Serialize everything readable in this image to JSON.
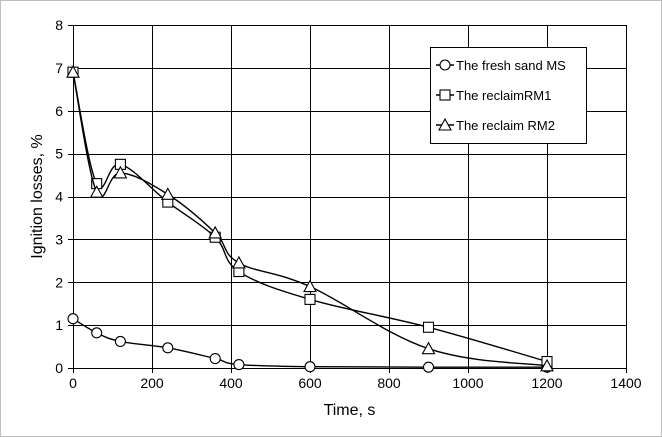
{
  "chart_data": {
    "type": "line",
    "xlabel": "Time, s",
    "ylabel": "Ignition losses, %",
    "xlim": [
      0,
      1400
    ],
    "ylim": [
      0,
      8
    ],
    "xticks": [
      0,
      200,
      400,
      600,
      800,
      1000,
      1200,
      1400
    ],
    "yticks": [
      0,
      1,
      2,
      3,
      4,
      5,
      6,
      7,
      8
    ],
    "grid": true,
    "legend": "top-right",
    "series": [
      {
        "name": "The fresh sand MS",
        "marker": "circle",
        "x": [
          0,
          60,
          120,
          240,
          360,
          420,
          600,
          900,
          1200
        ],
        "y": [
          1.15,
          0.82,
          0.62,
          0.47,
          0.22,
          0.08,
          0.03,
          0.02,
          0.02
        ]
      },
      {
        "name": "The reclaimRM1",
        "marker": "square",
        "x": [
          0,
          60,
          120,
          240,
          360,
          420,
          600,
          900,
          1200
        ],
        "y": [
          6.9,
          4.3,
          4.75,
          3.87,
          3.05,
          2.25,
          1.6,
          0.95,
          0.15
        ]
      },
      {
        "name": "The reclaim RM2",
        "marker": "triangle",
        "x": [
          0,
          60,
          120,
          240,
          360,
          420,
          600,
          900,
          1200
        ],
        "y": [
          6.9,
          4.1,
          4.55,
          4.05,
          3.15,
          2.45,
          1.9,
          0.45,
          0.05
        ]
      }
    ]
  }
}
